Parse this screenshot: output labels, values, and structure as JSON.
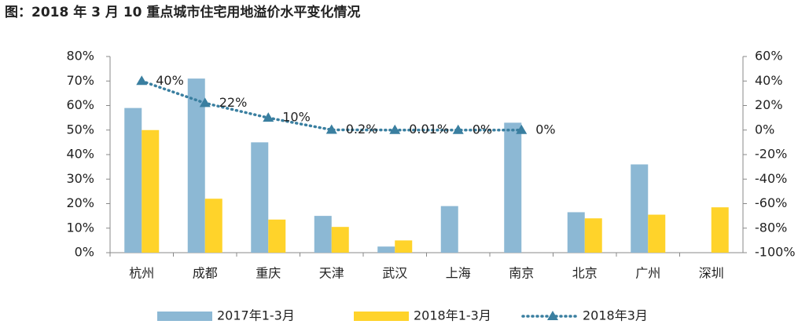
{
  "chart_data": {
    "type": "bar",
    "title": "图：2018 年 3 月 10 重点城市住宅用地溢价水平变化情况",
    "categories": [
      "杭州",
      "成都",
      "重庆",
      "天津",
      "武汉",
      "上海",
      "南京",
      "北京",
      "广州",
      "深圳"
    ],
    "series": [
      {
        "name": "2017年1-3月",
        "color": "#8cb8d4",
        "values": [
          59,
          71,
          45,
          15,
          2.5,
          19,
          53,
          16.5,
          36,
          null
        ]
      },
      {
        "name": "2018年1-3月",
        "color": "#ffd32a",
        "values": [
          50,
          22,
          13.5,
          10.5,
          5,
          null,
          null,
          14,
          15.5,
          18.5
        ]
      },
      {
        "name": "2018年3月",
        "color": "#3a7fa0",
        "type": "line",
        "axis": "y2",
        "values": [
          40,
          22,
          10,
          0.2,
          0.01,
          0,
          0,
          null,
          null,
          null
        ],
        "value_labels": [
          "40%",
          "22%",
          "10%",
          "0.2%",
          "0.01%",
          "0%",
          "0%",
          null,
          null,
          null
        ]
      }
    ],
    "ylim": [
      0,
      80
    ],
    "yticks": [
      {
        "value": 0,
        "label": "0%"
      },
      {
        "value": 10,
        "label": "10%"
      },
      {
        "value": 20,
        "label": "20%"
      },
      {
        "value": 30,
        "label": "30%"
      },
      {
        "value": 40,
        "label": "40%"
      },
      {
        "value": 50,
        "label": "50%"
      },
      {
        "value": 60,
        "label": "60%"
      },
      {
        "value": 70,
        "label": "70%"
      },
      {
        "value": 80,
        "label": "80%"
      }
    ],
    "y2lim": [
      -100,
      60
    ],
    "y2ticks": [
      {
        "value": -100,
        "label": "-100%"
      },
      {
        "value": -80,
        "label": "-80%"
      },
      {
        "value": -60,
        "label": "-60%"
      },
      {
        "value": -40,
        "label": "-40%"
      },
      {
        "value": -20,
        "label": "-20%"
      },
      {
        "value": 0,
        "label": "0%"
      },
      {
        "value": 20,
        "label": "20%"
      },
      {
        "value": 40,
        "label": "40%"
      },
      {
        "value": 60,
        "label": "60%"
      }
    ],
    "legend": "bottom"
  }
}
